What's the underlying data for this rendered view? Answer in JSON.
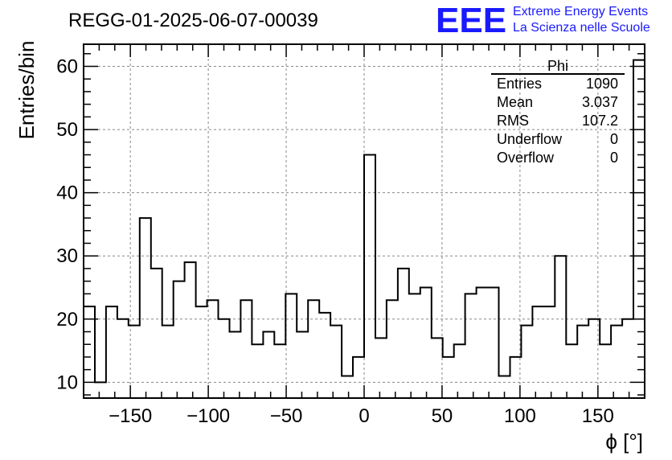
{
  "chart_data": {
    "type": "histogram",
    "title": "REGG-01-2025-06-07-00039",
    "xlabel": "ϕ [°]",
    "ylabel": "Entries/bin",
    "xlim": [
      -180,
      180
    ],
    "ylim": [
      7.5,
      63.5
    ],
    "bin_width": 7.2,
    "x_ticks": [
      -150,
      -100,
      -50,
      0,
      50,
      100,
      150
    ],
    "x_tick_labels": [
      "−150",
      "−100",
      "−50",
      "0",
      "50",
      "100",
      "150"
    ],
    "y_ticks": [
      10,
      20,
      30,
      40,
      50,
      60
    ],
    "y_tick_labels": [
      "10",
      "20",
      "30",
      "40",
      "50",
      "60"
    ],
    "grid": true,
    "values": [
      22,
      10,
      22,
      20,
      19,
      36,
      28,
      19,
      26,
      29,
      22,
      23,
      20,
      18,
      23,
      16,
      18,
      16,
      24,
      18,
      23,
      21,
      19,
      11,
      14,
      46,
      17,
      23,
      28,
      24,
      25,
      17,
      14,
      16,
      24,
      25,
      25,
      11,
      14,
      19,
      22,
      22,
      30,
      16,
      19,
      20,
      16,
      19,
      20,
      61
    ],
    "line_color": "#000000"
  },
  "stats_box": {
    "title": "Phi",
    "rows": [
      {
        "label": "Entries",
        "value": "1090"
      },
      {
        "label": "Mean",
        "value": "3.037"
      },
      {
        "label": "RMS",
        "value": "107.2"
      },
      {
        "label": "Underflow",
        "value": "0"
      },
      {
        "label": "Overflow",
        "value": "0"
      }
    ]
  },
  "logo": {
    "mark": "EEE",
    "line1": "Extreme Energy Events",
    "line2": "La Scienza nelle Scuole",
    "color": "#1a1aff"
  }
}
